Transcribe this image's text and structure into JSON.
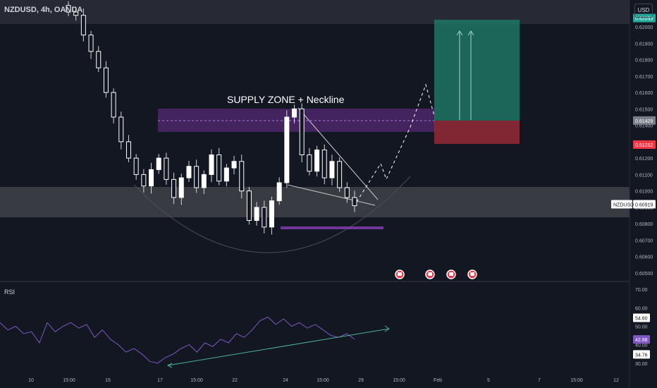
{
  "header": {
    "symbol_line": "NZDUSD, 4h, OANDA",
    "currency_button": "USD"
  },
  "annotation": {
    "supply_label": "SUPPLY ZONE + Neckline"
  },
  "price_axis": {
    "ticks": [
      "0.62000",
      "0.61900",
      "0.61800",
      "0.61700",
      "0.61600",
      "0.61500",
      "0.61400",
      "0.61300",
      "0.61200",
      "0.61100",
      "0.61000",
      "0.60900",
      "0.60800",
      "0.60700",
      "0.60600",
      "0.60500"
    ],
    "badges": [
      {
        "label": "0.62053",
        "kind": "top",
        "color": "#26a69a"
      },
      {
        "label": "0.61429",
        "kind": "entry",
        "color": "#7b8088"
      },
      {
        "label": "0.61282",
        "kind": "stop",
        "color": "#f23645"
      },
      {
        "label": "0.60919",
        "kind": "last",
        "color": "#ffffff",
        "ticker": "NZDUSD"
      }
    ]
  },
  "rsi_panel": {
    "label": "RSI",
    "ticks": [
      "70.00",
      "60.00",
      "50.00",
      "40.00",
      "30.00"
    ],
    "badges": [
      {
        "label": "54.60",
        "color": "#ffffff"
      },
      {
        "label": "42.88",
        "color": "#7e57c2"
      },
      {
        "label": "34.76",
        "color": "#ffffff"
      }
    ]
  },
  "time_axis": [
    "10",
    "15:00",
    "15",
    "17",
    "15:00",
    "22",
    "24",
    "15:00",
    "29",
    "15:00",
    "Feb",
    "5",
    "7",
    "15:00",
    "12"
  ],
  "events": [
    "flag-event",
    "flag-event",
    "flag-event",
    "flag-event"
  ],
  "colors": {
    "background": "#131722",
    "bull": "#ffffff",
    "bear": "#131722",
    "supply": "#6d2f8f",
    "demand": "#3a3d45",
    "target": "#1f7a68",
    "stop": "#a72d3a",
    "rsi": "#7e57c2",
    "trend": "#4caf95"
  },
  "chart_data": {
    "type": "candlestick",
    "title": "NZDUSD, 4h, OANDA",
    "ylim": [
      0.6045,
      0.621
    ],
    "price_path": [
      0.6209,
      0.6207,
      0.6195,
      0.6185,
      0.6175,
      0.616,
      0.6145,
      0.613,
      0.612,
      0.611,
      0.6103,
      0.6113,
      0.612,
      0.6107,
      0.6096,
      0.6108,
      0.6115,
      0.6102,
      0.611,
      0.6122,
      0.6106,
      0.6114,
      0.6118,
      0.61,
      0.6082,
      0.609,
      0.6078,
      0.6094,
      0.6105,
      0.6145,
      0.615,
      0.6122,
      0.6112,
      0.6125,
      0.6108,
      0.6118,
      0.6102,
      0.6096,
      0.6091
    ],
    "last_price": 0.60919,
    "supply_zone": [
      0.6134,
      0.6149
    ],
    "demand_zone": [
      0.6083,
      0.61
    ],
    "trade": {
      "entry": 0.61429,
      "target": 0.62053,
      "stop": 0.61282
    },
    "rsi": {
      "ylim": [
        28,
        72
      ],
      "values": [
        52,
        48,
        50,
        46,
        47,
        41,
        52,
        47,
        50,
        52,
        49,
        51,
        44,
        48,
        43,
        40,
        36,
        38,
        35,
        31,
        30,
        33,
        35,
        38,
        40,
        36,
        41,
        39,
        43,
        41,
        46,
        44,
        48,
        53,
        55,
        51,
        54,
        50,
        52,
        49,
        51,
        48,
        45,
        44,
        46,
        43
      ],
      "reference_levels": [
        54.6,
        42.88,
        34.76
      ]
    }
  }
}
